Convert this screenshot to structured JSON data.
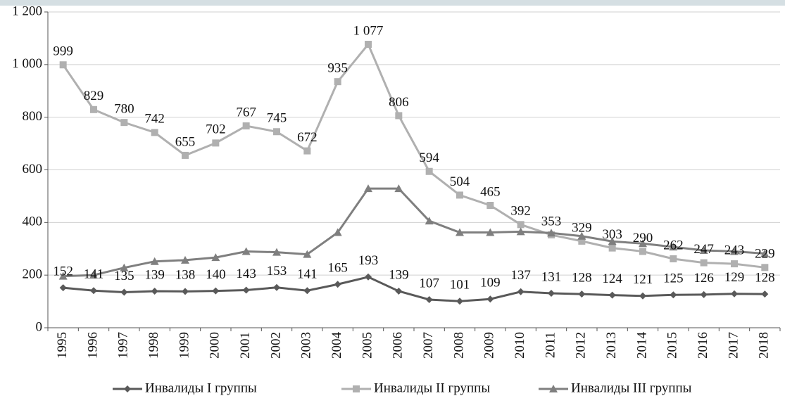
{
  "chart_data": {
    "type": "line",
    "categories": [
      "1995",
      "1996",
      "1997",
      "1998",
      "1999",
      "2000",
      "2001",
      "2002",
      "2003",
      "2004",
      "2005",
      "2006",
      "2007",
      "2008",
      "2009",
      "2010",
      "2011",
      "2012",
      "2013",
      "2014",
      "2015",
      "2016",
      "2017",
      "2018"
    ],
    "series": [
      {
        "name": "Инвалиды I группы",
        "color": "#595959",
        "marker": "diamond",
        "values": [
          152,
          141,
          135,
          139,
          138,
          140,
          143,
          153,
          141,
          165,
          193,
          139,
          107,
          101,
          109,
          137,
          131,
          128,
          124,
          121,
          125,
          126,
          129,
          128
        ]
      },
      {
        "name": "Инвалиды II группы",
        "color": "#b0b0b0",
        "marker": "square",
        "values": [
          999,
          829,
          780,
          742,
          655,
          702,
          767,
          745,
          672,
          935,
          1077,
          806,
          594,
          504,
          465,
          392,
          353,
          329,
          303,
          290,
          262,
          247,
          243,
          229
        ],
        "value_labels": [
          "999",
          "829",
          "780",
          "742",
          "655",
          "702",
          "767",
          "745",
          "672",
          "935",
          "1 077",
          "806",
          "594",
          "504",
          "465",
          "392",
          "353",
          "329",
          "303",
          "290",
          "262",
          "247",
          "243",
          "229"
        ]
      },
      {
        "name": "Инвалиды III группы",
        "color": "#7f7f7f",
        "marker": "triangle",
        "values": [
          196,
          200,
          228,
          252,
          257,
          267,
          290,
          287,
          279,
          362,
          529,
          529,
          406,
          362,
          362,
          365,
          360,
          348,
          328,
          320,
          307,
          294,
          290,
          282
        ]
      }
    ],
    "ylim": [
      0,
      1200
    ],
    "yticks": [
      0,
      200,
      400,
      600,
      800,
      {
        "value": 1000,
        "label": "1 000"
      },
      {
        "value": 1200,
        "label": "1 200"
      }
    ],
    "grid": true,
    "legend": "bottom"
  }
}
